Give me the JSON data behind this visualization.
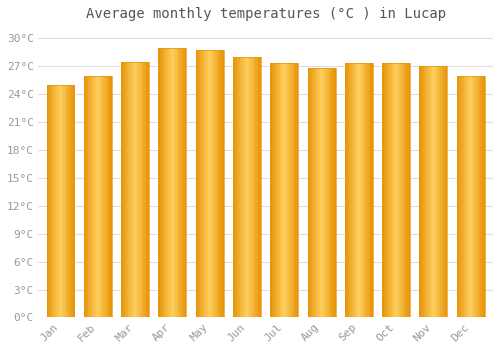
{
  "title": "Average monthly temperatures (°C ) in Lucap",
  "months": [
    "Jan",
    "Feb",
    "Mar",
    "Apr",
    "May",
    "Jun",
    "Jul",
    "Aug",
    "Sep",
    "Oct",
    "Nov",
    "Dec"
  ],
  "temperatures": [
    25.0,
    26.0,
    27.5,
    29.0,
    28.8,
    28.0,
    27.3,
    26.8,
    27.3,
    27.3,
    27.0,
    26.0
  ],
  "bar_color_main": "#FBBA25",
  "bar_color_light": "#FDD060",
  "bar_color_dark": "#E8950A",
  "background_color": "#FFFFFF",
  "plot_bg_color": "#FFFFFF",
  "grid_color": "#DDDDDD",
  "ylim": [
    0,
    31
  ],
  "yticks": [
    0,
    3,
    6,
    9,
    12,
    15,
    18,
    21,
    24,
    27,
    30
  ],
  "ytick_labels": [
    "0°C",
    "3°C",
    "6°C",
    "9°C",
    "12°C",
    "15°C",
    "18°C",
    "21°C",
    "24°C",
    "27°C",
    "30°C"
  ],
  "title_fontsize": 10,
  "tick_fontsize": 8,
  "bar_width": 0.75
}
